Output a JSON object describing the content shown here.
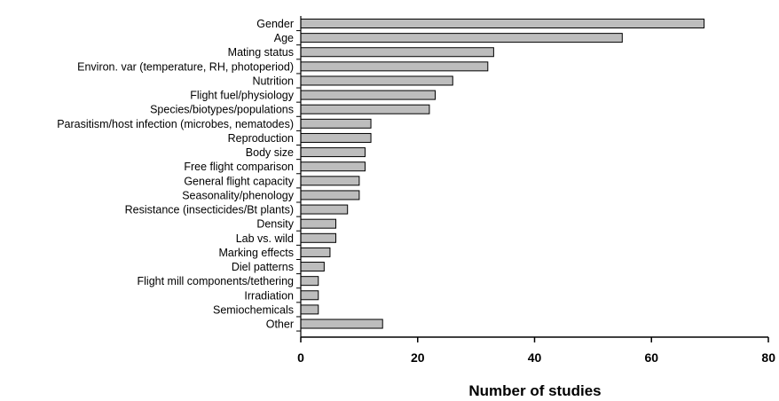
{
  "chart_data": {
    "type": "bar",
    "orientation": "horizontal",
    "categories": [
      "Gender",
      "Age",
      "Mating status",
      "Environ. var (temperature, RH, photoperiod)",
      "Nutrition",
      "Flight fuel/physiology",
      "Species/biotypes/populations",
      "Parasitism/host infection (microbes, nematodes)",
      "Reproduction",
      "Body size",
      "Free flight comparison",
      "General flight capacity",
      "Seasonality/phenology",
      "Resistance (insecticides/Bt plants)",
      "Density",
      "Lab vs. wild",
      "Marking effects",
      "Diel patterns",
      "Flight mill components/tethering",
      "Irradiation",
      "Semiochemicals",
      "Other"
    ],
    "values": [
      69,
      55,
      33,
      32,
      26,
      23,
      22,
      12,
      12,
      11,
      11,
      10,
      10,
      8,
      6,
      6,
      5,
      4,
      3,
      3,
      3,
      14
    ],
    "xlabel": "Number of studies",
    "xlim": [
      0,
      80
    ],
    "xticks": [
      "0",
      "20",
      "40",
      "60",
      "80"
    ],
    "grid": false,
    "bar_color": "#bdbdbd",
    "bar_stroke": "#000000"
  }
}
